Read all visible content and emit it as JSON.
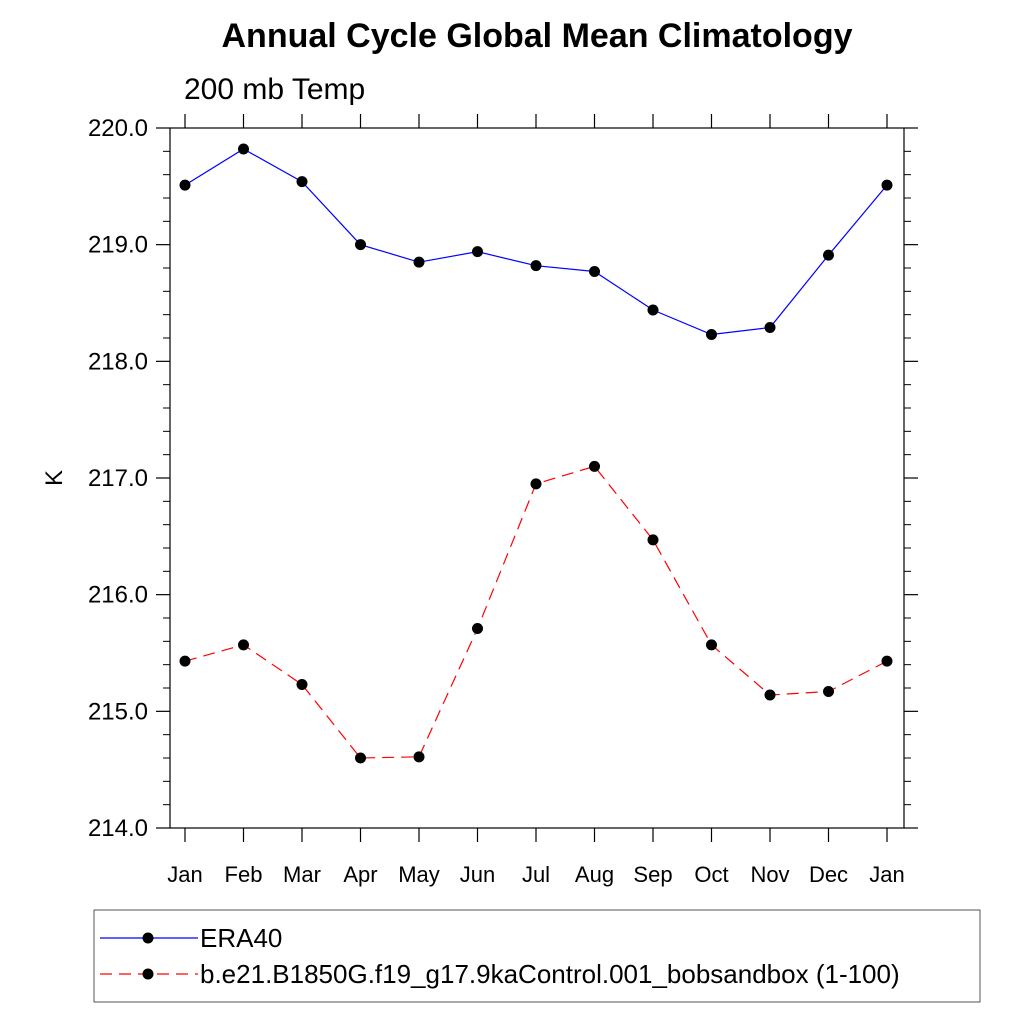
{
  "chart_data": {
    "type": "line",
    "title": "Annual Cycle Global Mean Climatology",
    "subtitle": "200 mb Temp",
    "xlabel": "",
    "ylabel": "K",
    "categories": [
      "Jan",
      "Feb",
      "Mar",
      "Apr",
      "May",
      "Jun",
      "Jul",
      "Aug",
      "Sep",
      "Oct",
      "Nov",
      "Dec",
      "Jan"
    ],
    "ylim": [
      214.0,
      220.0
    ],
    "yticks": [
      "214.0",
      "215.0",
      "216.0",
      "217.0",
      "218.0",
      "219.0",
      "220.0"
    ],
    "grid": false,
    "legend_position": "bottom",
    "series": [
      {
        "name": "ERA40",
        "color": "#0000ff",
        "dash": "solid",
        "marker": "dot",
        "values": [
          219.51,
          219.82,
          219.54,
          219.0,
          218.85,
          218.94,
          218.82,
          218.77,
          218.44,
          218.23,
          218.29,
          218.91,
          219.51
        ]
      },
      {
        "name": "b.e21.B1850G.f19_g17.9kaControl.001_bobsandbox (1-100)",
        "color": "#ff0000",
        "dash": "dashed",
        "marker": "dot",
        "values": [
          215.43,
          215.57,
          215.23,
          214.6,
          214.61,
          215.71,
          216.95,
          217.1,
          216.47,
          215.57,
          215.14,
          215.17,
          215.43
        ]
      }
    ]
  }
}
